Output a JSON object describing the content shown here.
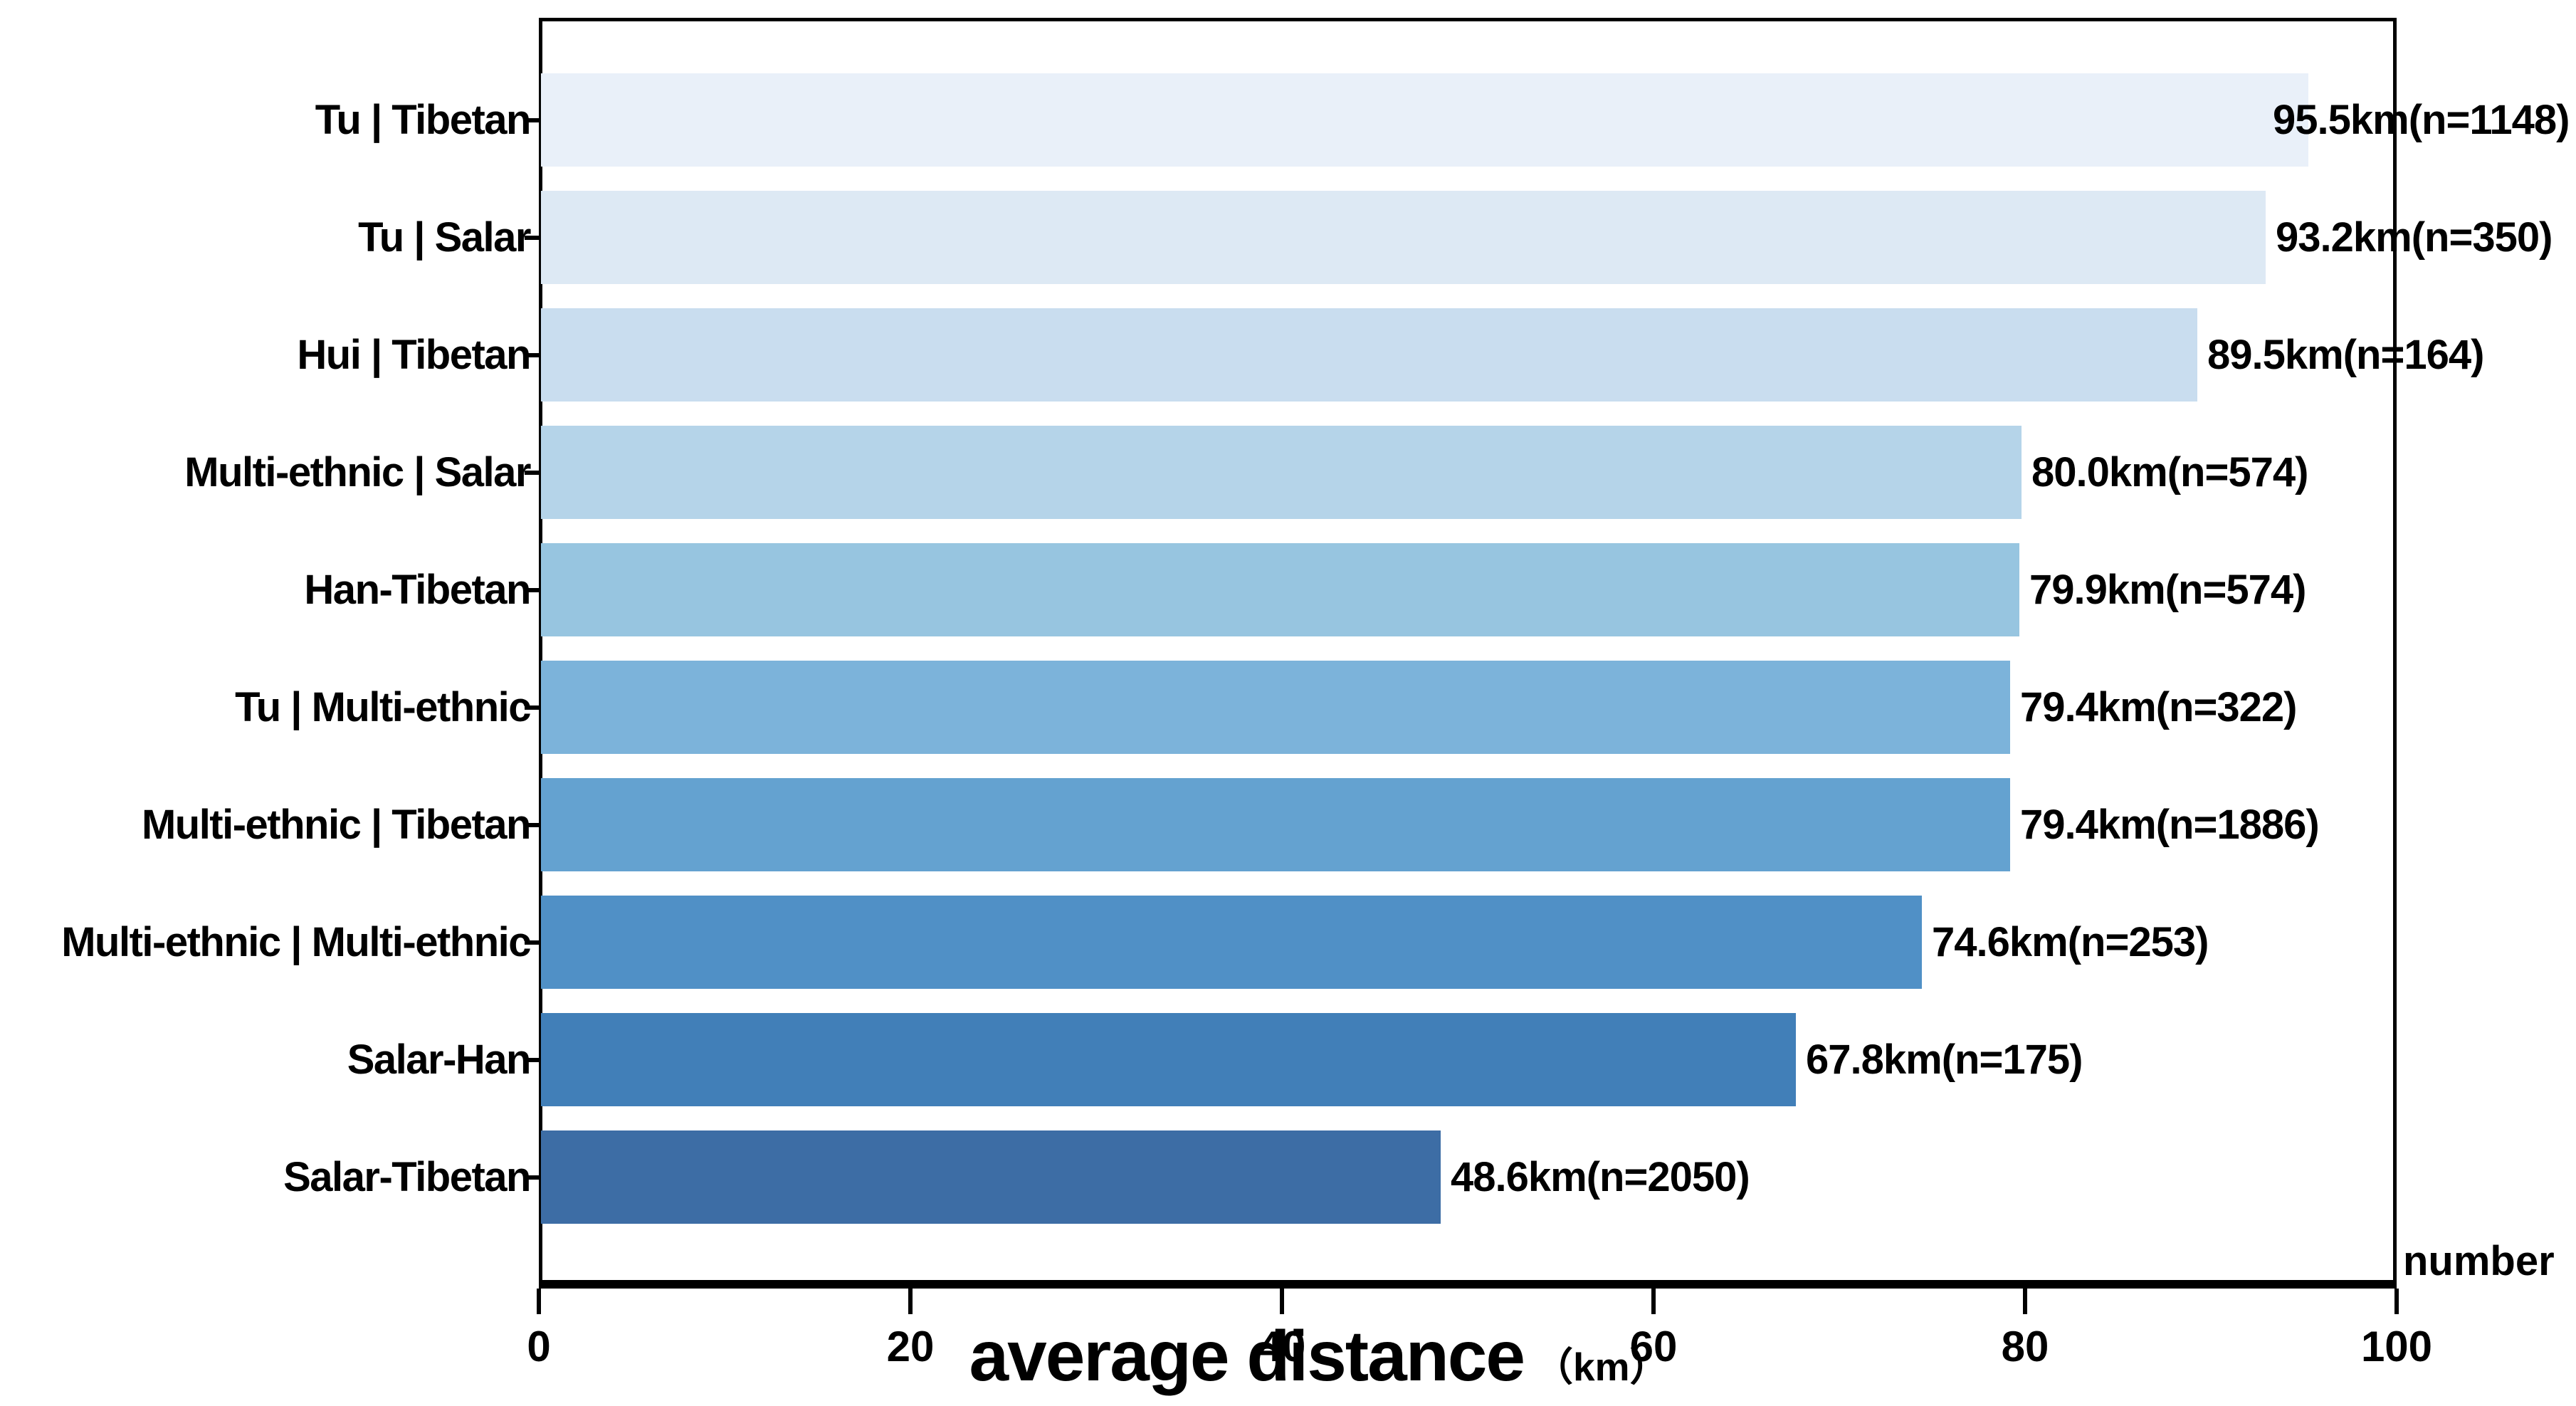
{
  "chart_data": {
    "type": "bar",
    "orientation": "horizontal",
    "title": "",
    "xlabel": "average distance",
    "xlabel_unit": "（km）",
    "right_corner_label": "number",
    "xlim": [
      0,
      100
    ],
    "x_ticks": [
      "0",
      "20",
      "40",
      "60",
      "80",
      "100"
    ],
    "x_tick_values": [
      0,
      20,
      40,
      60,
      80,
      100
    ],
    "grid": false,
    "legend": "none",
    "categories": [
      "Tu | Tibetan",
      "Tu | Salar",
      "Hui | Tibetan",
      "Multi-ethnic | Salar",
      "Han-Tibetan",
      "Tu | Multi-ethnic",
      "Multi-ethnic | Tibetan",
      "Multi-ethnic | Multi-ethnic",
      "Salar-Han",
      "Salar-Tibetan"
    ],
    "values": [
      95.5,
      93.2,
      89.5,
      80.0,
      79.9,
      79.4,
      79.4,
      74.6,
      67.8,
      48.6
    ],
    "sample_sizes": [
      1148,
      350,
      164,
      574,
      574,
      322,
      1886,
      253,
      175,
      2050
    ],
    "bar_labels": [
      "95.5km(n=1148)",
      "93.2km(n=350)",
      "89.5km(n=164)",
      "80.0km(n=574)",
      "79.9km(n=574)",
      "79.4km(n=322)",
      "79.4km(n=1886)",
      "74.6km(n=253)",
      "67.8km(n=175)",
      "48.6km(n=2050)"
    ],
    "bar_colors": [
      "#e9f0f9",
      "#dde9f4",
      "#c9ddef",
      "#b5d4e9",
      "#97c5e0",
      "#7cb3da",
      "#64a2d0",
      "#5090c6",
      "#417fb8",
      "#3d6da5"
    ],
    "axis_color": "#000000",
    "background_color": "#ffffff"
  }
}
